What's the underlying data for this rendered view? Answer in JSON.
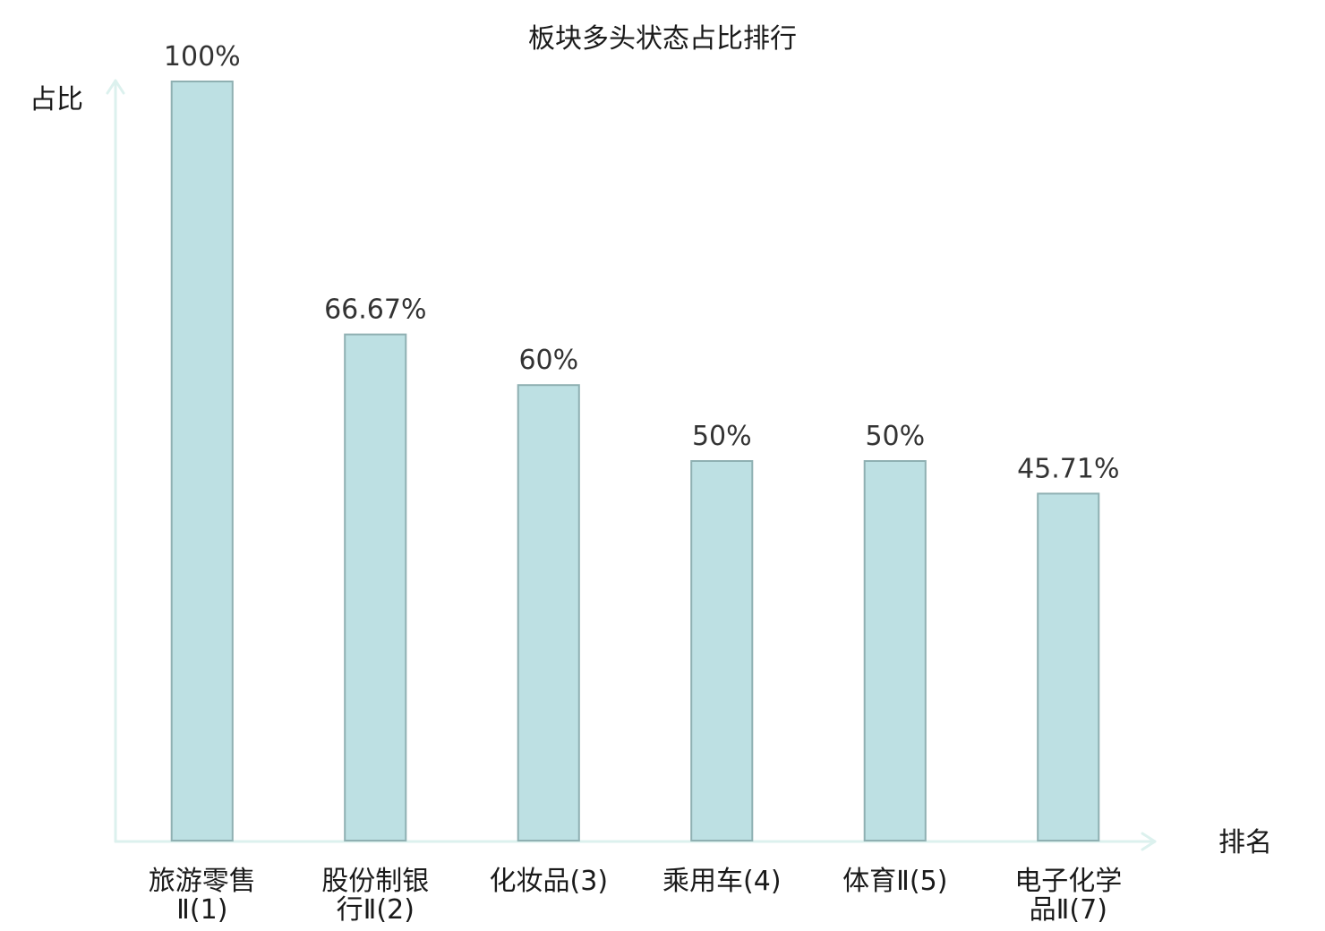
{
  "chart_data": {
    "type": "bar",
    "title": "板块多头状态占比排行",
    "ylabel": "占比",
    "xlabel": "排名",
    "categories": [
      "旅游零售Ⅱ(1)",
      "股份制银行Ⅱ(2)",
      "化妆品(3)",
      "乘用车(4)",
      "体育Ⅱ(5)",
      "电子化学品Ⅱ(7)"
    ],
    "values": [
      100,
      66.67,
      60,
      50,
      50,
      45.71
    ],
    "data_labels": [
      "100%",
      "66.67%",
      "60%",
      "50%",
      "50%",
      "45.71%"
    ],
    "ylim": [
      0,
      100
    ],
    "grid": false,
    "legend": false,
    "colors": {
      "bar_fill": "#bde0e3",
      "bar_stroke": "#8fb0b2",
      "axis": "#dcf1ee",
      "label": "#1a1a1a",
      "highlight_label": "#e00000"
    },
    "highlight_index": 5
  }
}
